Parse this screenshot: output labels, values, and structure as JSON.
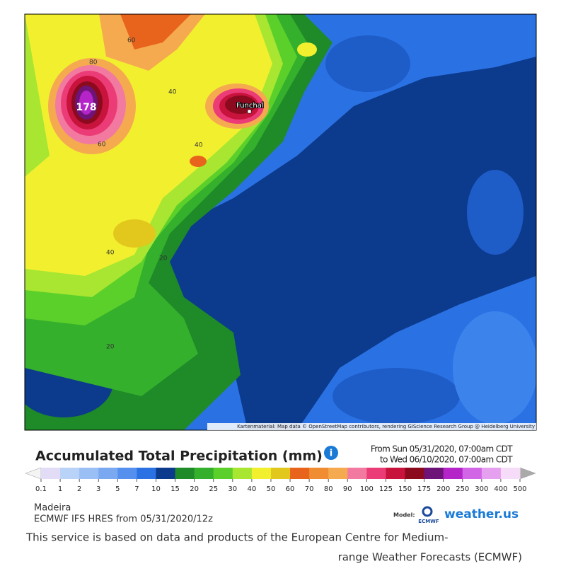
{
  "map": {
    "contour_labels": [
      "60",
      "80",
      "178",
      "40",
      "60",
      "40",
      "40",
      "20",
      "20"
    ],
    "place": "Funchal",
    "attribution": "Kartenmaterial: Map data © OpenStreetMap contributors, rendering GIScience Research Group @ Heidelberg University"
  },
  "legend": {
    "title": "Accumulated Total Precipitation (mm)",
    "period": [
      "From Sun 05/31/2020, 07:00am CDT",
      "to Wed 06/10/2020, 07:00am CDT"
    ],
    "scale": {
      "values": [
        0.1,
        1,
        2,
        3,
        5,
        7,
        10,
        15,
        20,
        25,
        30,
        40,
        50,
        60,
        70,
        80,
        90,
        100,
        125,
        150,
        175,
        200,
        250,
        300,
        400,
        500
      ],
      "colors": [
        "#e2dcf6",
        "#b9d2f7",
        "#99bff5",
        "#7aa9f1",
        "#5590ee",
        "#2a72e4",
        "#0c3a8c",
        "#1e8a28",
        "#34b02c",
        "#5cd02a",
        "#a8e632",
        "#f2f02e",
        "#e2c81c",
        "#e8641c",
        "#f08c32",
        "#f5aa50",
        "#f27aa0",
        "#ec3c78",
        "#c8143c",
        "#8c0a1e",
        "#6e1478",
        "#b424c8",
        "#d264e6",
        "#e6a0f0",
        "#f6dcf8"
      ]
    }
  },
  "footer": {
    "region": "Madeira",
    "model_run": "ECMWF IFS HRES from 05/31/2020/12z",
    "model_label": "Model:",
    "ecmwf": "ECMWF",
    "brand": "weather.us",
    "disclaimer": [
      "This service is based on data and products of the European Centre for Medium-",
      "range Weather Forecasts (ECMWF)"
    ]
  }
}
